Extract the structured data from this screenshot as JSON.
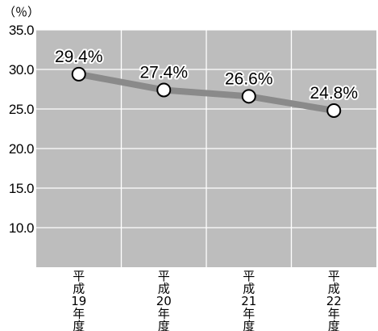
{
  "chart_data": {
    "type": "line",
    "unit_label": "（％）",
    "categories": [
      [
        "平",
        "成",
        "19",
        "年",
        "度"
      ],
      [
        "平",
        "成",
        "20",
        "年",
        "度"
      ],
      [
        "平",
        "成",
        "21",
        "年",
        "度"
      ],
      [
        "平",
        "成",
        "22",
        "年",
        "度"
      ]
    ],
    "series": [
      {
        "values": [
          29.4,
          27.4,
          26.6,
          24.8
        ],
        "labels": [
          "29.4%",
          "27.4%",
          "26.6%",
          "24.8%"
        ]
      }
    ],
    "yticks": [
      "35.0",
      "30.0",
      "25.0",
      "20.0",
      "15.0",
      "10.0"
    ],
    "ylim": [
      5.0,
      35.0
    ],
    "grid": true,
    "colors": {
      "plot_background": "#bdbdbd",
      "grid": "#ffffff",
      "line": "#8a8a8a",
      "marker_fill": "#ffffff",
      "marker_stroke": "#000000"
    }
  }
}
